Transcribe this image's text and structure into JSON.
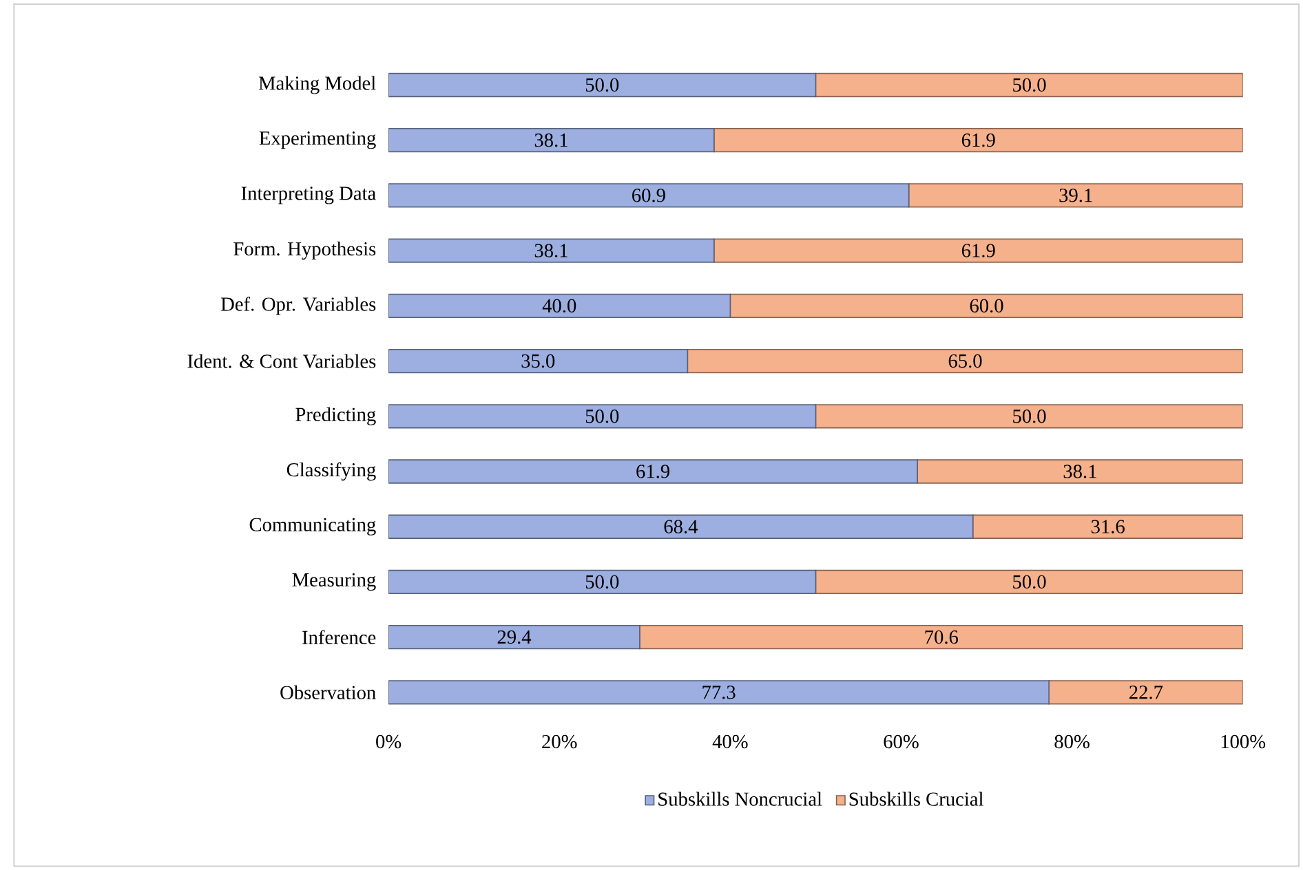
{
  "chart_data": {
    "type": "bar",
    "orientation": "horizontal",
    "stacked": true,
    "categories": [
      "Making Model",
      "Experimenting",
      "Interpreting Data",
      "Form. Hypothesis",
      "Def. Opr. Variables",
      "Ident. & Cont Variables",
      "Predicting",
      "Classifying",
      "Communicating",
      "Measuring",
      "Inference",
      "Observation"
    ],
    "series": [
      {
        "name": "Subskills Noncrucial",
        "color": "#9dafe0",
        "values": [
          50.0,
          38.1,
          60.9,
          38.1,
          40.0,
          35.0,
          50.0,
          61.9,
          68.4,
          50.0,
          29.4,
          77.3
        ],
        "value_labels": [
          "50.0",
          "38.1",
          "60.9",
          "38.1",
          "40.0",
          "35.0",
          "50.0",
          "61.9",
          "68.4",
          "50.0",
          "29.4",
          "77.3"
        ]
      },
      {
        "name": "Subskills Crucial",
        "color": "#f5b08c",
        "values": [
          50.0,
          61.9,
          39.1,
          61.9,
          60.0,
          65.0,
          50.0,
          38.1,
          31.6,
          50.0,
          70.6,
          22.7
        ],
        "value_labels": [
          "50.0",
          "61.9",
          "39.1",
          "61.9",
          "60.0",
          "65.0",
          "50.0",
          "38.1",
          "31.6",
          "50.0",
          "70.6",
          "22.7"
        ]
      }
    ],
    "xlim": [
      0,
      100
    ],
    "xticks": [
      {
        "value": 0,
        "label": "0%"
      },
      {
        "value": 20,
        "label": "20%"
      },
      {
        "value": 40,
        "label": "40%"
      },
      {
        "value": 60,
        "label": "60%"
      },
      {
        "value": 80,
        "label": "80%"
      },
      {
        "value": 100,
        "label": "100%"
      }
    ],
    "legend": "bottom"
  }
}
